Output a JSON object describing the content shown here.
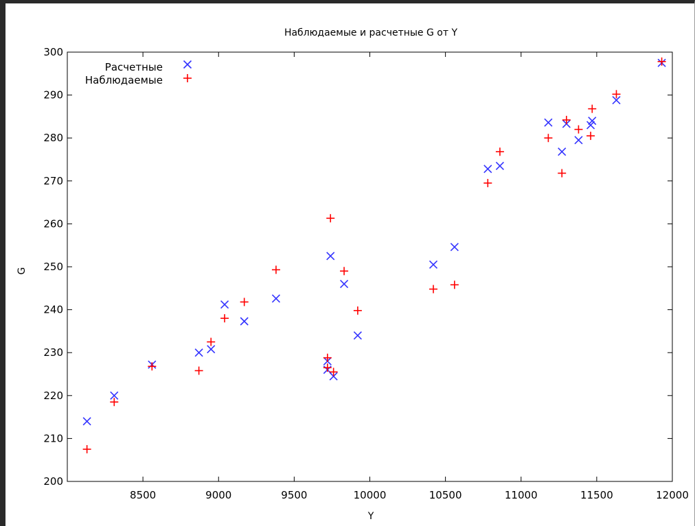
{
  "chart_data": {
    "type": "scatter",
    "title": "Наблюдаемые и расчетные G от Y",
    "xlabel": "Y",
    "ylabel": "G",
    "xlim": [
      8000,
      12000
    ],
    "ylim": [
      200,
      300
    ],
    "xticks": [
      8500,
      9000,
      9500,
      10000,
      10500,
      11000,
      11500,
      12000
    ],
    "yticks": [
      200,
      210,
      220,
      230,
      240,
      250,
      260,
      270,
      280,
      290,
      300
    ],
    "grid": false,
    "legend_position": "top-left",
    "series": [
      {
        "name": "Расчетные",
        "marker": "x",
        "color": "#3333ff",
        "points": [
          [
            8130,
            214
          ],
          [
            8310,
            220
          ],
          [
            8560,
            227.2
          ],
          [
            8870,
            230
          ],
          [
            8950,
            230.8
          ],
          [
            9040,
            241.2
          ],
          [
            9170,
            237.3
          ],
          [
            9380,
            242.6
          ],
          [
            9720,
            226
          ],
          [
            9720,
            228
          ],
          [
            9740,
            252.5
          ],
          [
            9760,
            224.5
          ],
          [
            9830,
            246
          ],
          [
            9920,
            234
          ],
          [
            10420,
            250.5
          ],
          [
            10560,
            254.6
          ],
          [
            10780,
            272.8
          ],
          [
            10860,
            273.5
          ],
          [
            11180,
            283.6
          ],
          [
            11270,
            276.8
          ],
          [
            11300,
            283.3
          ],
          [
            11380,
            279.5
          ],
          [
            11460,
            283
          ],
          [
            11470,
            284
          ],
          [
            11630,
            288.8
          ],
          [
            11930,
            297.5
          ]
        ]
      },
      {
        "name": "Наблюдаемые",
        "marker": "+",
        "color": "#ff0000",
        "points": [
          [
            8130,
            207.5
          ],
          [
            8310,
            218.5
          ],
          [
            8560,
            226.8
          ],
          [
            8870,
            225.8
          ],
          [
            8950,
            232.5
          ],
          [
            9040,
            238
          ],
          [
            9170,
            241.8
          ],
          [
            9380,
            249.3
          ],
          [
            9720,
            228.8
          ],
          [
            9720,
            226.5
          ],
          [
            9740,
            261.3
          ],
          [
            9760,
            225.5
          ],
          [
            9830,
            249
          ],
          [
            9920,
            239.8
          ],
          [
            10420,
            244.8
          ],
          [
            10560,
            245.8
          ],
          [
            10780,
            269.5
          ],
          [
            10860,
            276.8
          ],
          [
            11180,
            280
          ],
          [
            11270,
            271.8
          ],
          [
            11300,
            284.2
          ],
          [
            11380,
            282
          ],
          [
            11460,
            280.5
          ],
          [
            11470,
            286.8
          ],
          [
            11630,
            290.2
          ],
          [
            11930,
            297.8
          ]
        ]
      }
    ]
  },
  "colors": {
    "series_calc": "#3333ff",
    "series_obs": "#ff0000",
    "axis": "#000000",
    "frame": "#2a2a2a"
  }
}
